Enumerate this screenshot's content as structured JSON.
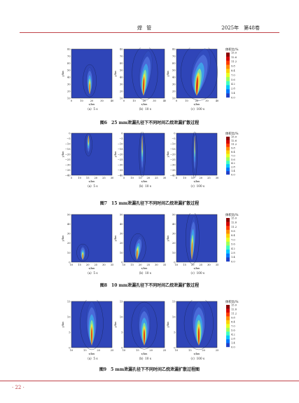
{
  "header": {
    "journal": "焊 管",
    "issue": "2025年　第48卷"
  },
  "footer": {
    "page_label": "· 22 ·"
  },
  "colorbar": {
    "title": "体积比/%",
    "ticks": [
      "15.0",
      "12.6",
      "11.2",
      "9.8",
      "8.4",
      "7.0",
      "5.6",
      "4.2",
      "2.8",
      "1.4",
      "0.0"
    ],
    "colors": [
      "#8b0000",
      "#d40000",
      "#ff3b00",
      "#ff8c00",
      "#ffd000",
      "#e8ff20",
      "#9dff5c",
      "#3fffc0",
      "#00c8ff",
      "#0078ff",
      "#2040c8"
    ]
  },
  "figures": [
    {
      "caption": "图6　25 mm泄漏孔径下不同时间乙烷泄漏扩散过程",
      "xlabel": "x/km",
      "ylabel": "y/km",
      "xticks": [
        "0",
        "10",
        "20",
        "30",
        "40"
      ],
      "yticks": [
        "80",
        "70",
        "60",
        "50",
        "40",
        "30",
        "20",
        "10"
      ],
      "panels": [
        "（a）5 s",
        "（b）10 s",
        "（c）100 s"
      ]
    },
    {
      "caption": "图7　15 mm泄漏孔径下不同时间乙烷泄漏扩散过程",
      "xlabel": "x/km",
      "ylabel": "y/km",
      "xticks": [
        "5",
        "10",
        "15",
        "20",
        "25",
        "30"
      ],
      "yticks": [
        "0",
        "−5",
        "−10",
        "−15",
        "−20",
        "−25",
        "−30",
        "−35",
        "−40"
      ],
      "panels": [
        "（a）5 s",
        "（b）10 s",
        "（c）100 s"
      ]
    },
    {
      "caption": "图8　10 mm泄漏孔径下不同时间乙烷泄漏扩散过程",
      "xlabel": "x/km",
      "ylabel": "y/km",
      "xticks": [
        "10",
        "15",
        "20",
        "25",
        "30",
        "35"
      ],
      "yticks": [
        "50",
        "40",
        "30",
        "20",
        "10",
        "0"
      ],
      "panels": [
        "（a）5 s",
        "（b）10 s",
        "（c）100 s"
      ]
    },
    {
      "caption": "图9　5 mm泄漏孔径下不同时间乙烷泄漏扩散过程图",
      "xlabel": "x/km",
      "ylabel": "y/km",
      "xticks": [
        "10",
        "15",
        "20",
        "25"
      ],
      "yticks": [
        "15",
        "10",
        "5",
        "0"
      ],
      "panels": [
        "（a）5 s",
        "（b）10 s",
        "（c）100 s"
      ]
    }
  ]
}
